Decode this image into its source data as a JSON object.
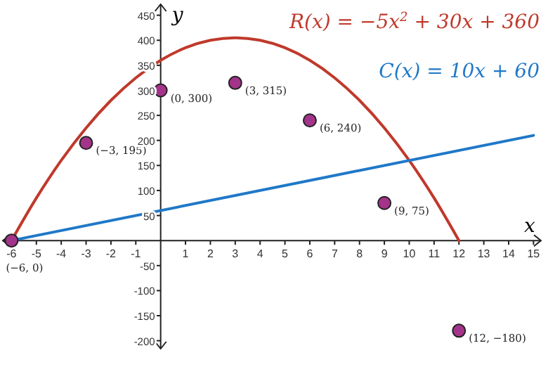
{
  "chart_data": {
    "type": "scatter",
    "xlabel": "x",
    "ylabel": "y",
    "xlim": [
      -6.35,
      15.3
    ],
    "ylim": [
      -216,
      472
    ],
    "xticks": [
      -6,
      -5,
      -4,
      -3,
      -2,
      -1,
      1,
      2,
      3,
      4,
      5,
      6,
      7,
      8,
      9,
      10,
      11,
      12,
      13,
      14,
      15
    ],
    "yticks": [
      -200,
      -150,
      -100,
      -50,
      50,
      100,
      150,
      200,
      250,
      300,
      350,
      400,
      450
    ],
    "grid": false,
    "series": [
      {
        "type": "line",
        "name": "R(x) = −5x$^{2}$ + 30x + 360",
        "color": "#c0392b",
        "x": [
          -6,
          -5,
          -4,
          -3,
          -2,
          -1,
          0,
          1,
          2,
          3,
          4,
          5,
          6,
          7,
          8,
          9,
          10,
          11,
          12
        ],
        "values": [
          0,
          85,
          160,
          225,
          280,
          325,
          360,
          385,
          400,
          405,
          400,
          385,
          360,
          325,
          280,
          225,
          160,
          85,
          0
        ]
      },
      {
        "type": "line",
        "name": "C(x) = 10x + 60",
        "color": "#1f78c8",
        "x": [
          -6,
          15
        ],
        "values": [
          0,
          210
        ]
      },
      {
        "color": "#a3348a",
        "marker": "circle",
        "x": [
          -6,
          -3,
          0,
          3,
          6,
          9,
          12
        ],
        "values": [
          0,
          195,
          300,
          315,
          240,
          75,
          -180
        ],
        "value_labels": [
          "(−6, 0)",
          "(−3, 195)",
          "(0, 300)",
          "(3, 315)",
          "(6, 240)",
          "(9, 75)",
          "(12, −180)"
        ]
      }
    ]
  }
}
